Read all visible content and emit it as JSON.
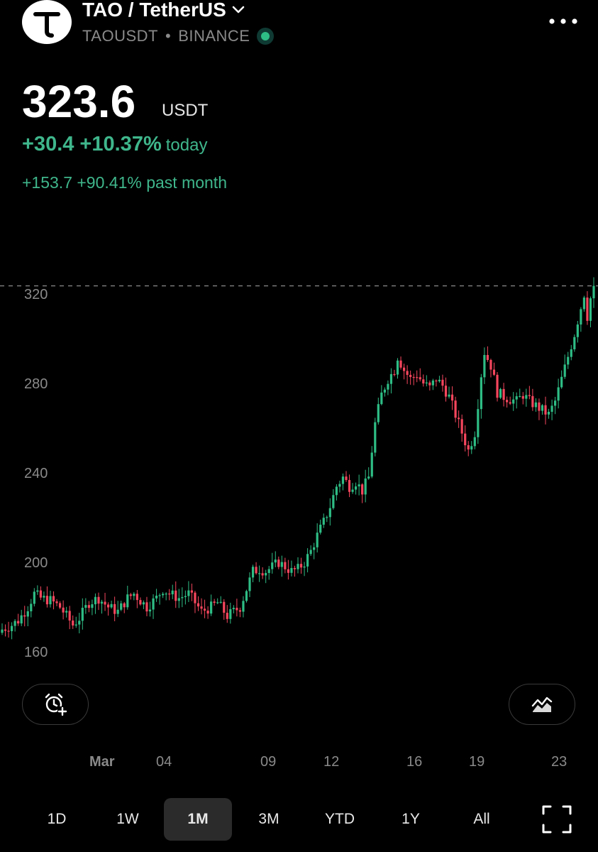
{
  "header": {
    "title": "TAO / TetherUS",
    "symbol": "TAOUSDT",
    "separator": "•",
    "exchange": "BINANCE",
    "icons": {
      "logo": "tao-logo-icon",
      "dropdown": "chevron-down-icon",
      "menu": "more-dots-icon",
      "live": "live-status-dot-icon"
    }
  },
  "quote": {
    "price": "323.6",
    "currency": "USDT",
    "change_today": "+30.4 +10.37%",
    "today_label": "today",
    "change_month": "+153.7 +90.41% past month"
  },
  "colors": {
    "up": "#2ebd85",
    "down": "#f6465d",
    "up_text": "#3fb68b",
    "axis_text": "#8a8a8a"
  },
  "chart_data": {
    "type": "candlestick",
    "y_ticks": [
      "320",
      "280",
      "240",
      "200",
      "160"
    ],
    "y_tick_values": [
      320,
      280,
      240,
      200,
      160
    ],
    "ylim": [
      146,
      332
    ],
    "x_ticks": [
      "Mar",
      "04",
      "09",
      "12",
      "16",
      "19",
      "23"
    ],
    "current_price_line": 323.6,
    "anchors": [
      [
        0,
        170
      ],
      [
        3,
        172
      ],
      [
        5,
        174
      ],
      [
        8,
        180
      ],
      [
        10,
        186
      ],
      [
        12,
        184
      ],
      [
        15,
        183
      ],
      [
        18,
        180
      ],
      [
        20,
        176
      ],
      [
        22,
        172
      ],
      [
        24,
        175
      ],
      [
        27,
        182
      ],
      [
        30,
        184
      ],
      [
        33,
        180
      ],
      [
        36,
        178
      ],
      [
        39,
        184
      ],
      [
        41,
        186
      ],
      [
        43,
        183
      ],
      [
        45,
        180
      ],
      [
        48,
        184
      ],
      [
        50,
        188
      ],
      [
        52,
        186
      ],
      [
        55,
        184
      ],
      [
        58,
        186
      ],
      [
        60,
        182
      ],
      [
        62,
        178
      ],
      [
        65,
        180
      ],
      [
        67,
        182
      ],
      [
        70,
        176
      ],
      [
        72,
        178
      ],
      [
        74,
        180
      ],
      [
        76,
        188
      ],
      [
        78,
        196
      ],
      [
        80,
        197
      ],
      [
        82,
        196
      ],
      [
        84,
        198
      ],
      [
        86,
        200
      ],
      [
        88,
        198
      ],
      [
        90,
        196
      ],
      [
        92,
        197
      ],
      [
        94,
        200
      ],
      [
        96,
        205
      ],
      [
        98,
        212
      ],
      [
        100,
        218
      ],
      [
        102,
        225
      ],
      [
        104,
        234
      ],
      [
        106,
        238
      ],
      [
        108,
        234
      ],
      [
        110,
        236
      ],
      [
        112,
        232
      ],
      [
        114,
        238
      ],
      [
        116,
        262
      ],
      [
        118,
        275
      ],
      [
        120,
        282
      ],
      [
        122,
        286
      ],
      [
        123,
        292
      ],
      [
        125,
        286
      ],
      [
        127,
        282
      ],
      [
        129,
        284
      ],
      [
        131,
        280
      ],
      [
        133,
        278
      ],
      [
        135,
        282
      ],
      [
        137,
        279
      ],
      [
        139,
        274
      ],
      [
        141,
        266
      ],
      [
        143,
        258
      ],
      [
        145,
        250
      ],
      [
        147,
        258
      ],
      [
        149,
        284
      ],
      [
        150,
        294
      ],
      [
        152,
        288
      ],
      [
        154,
        276
      ],
      [
        156,
        274
      ],
      [
        158,
        273
      ],
      [
        160,
        272
      ],
      [
        162,
        275
      ],
      [
        164,
        272
      ],
      [
        166,
        270
      ],
      [
        168,
        268
      ],
      [
        170,
        266
      ],
      [
        172,
        272
      ],
      [
        174,
        282
      ],
      [
        176,
        292
      ],
      [
        178,
        302
      ],
      [
        180,
        314
      ],
      [
        181,
        320
      ],
      [
        182,
        310
      ],
      [
        183,
        318
      ],
      [
        184,
        323.6
      ]
    ]
  },
  "controls": {
    "alarm_icon": "add-alarm-icon",
    "indicator_icon": "chart-indicator-icon",
    "fullscreen_icon": "fullscreen-icon"
  },
  "ranges": [
    {
      "label": "1D"
    },
    {
      "label": "1W"
    },
    {
      "label": "1M",
      "active": true
    },
    {
      "label": "3M"
    },
    {
      "label": "YTD"
    },
    {
      "label": "1Y"
    },
    {
      "label": "All"
    }
  ]
}
